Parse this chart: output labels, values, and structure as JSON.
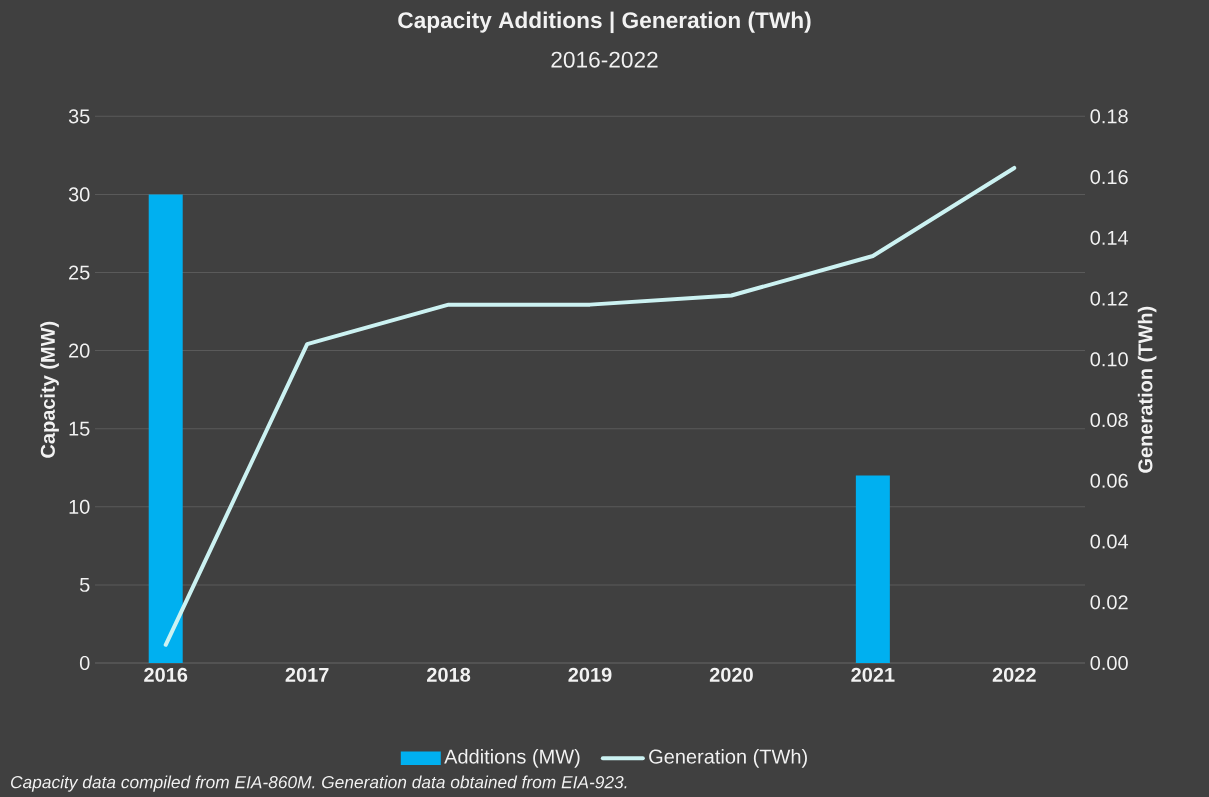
{
  "chart_data": {
    "type": "bar",
    "title": "Capacity Additions | Generation (TWh)",
    "subtitle": "2016-2022",
    "ylabel": "Capacity (MW)",
    "y2label": "Generation (TWh)",
    "categories": [
      "2016",
      "2017",
      "2018",
      "2019",
      "2020",
      "2021",
      "2022"
    ],
    "series": [
      {
        "name": "Additions (MW)",
        "color": "#00b0f0",
        "values": [
          30,
          0,
          0,
          0,
          0,
          12,
          0
        ]
      },
      {
        "name": "Generation (TWh)",
        "type": "line",
        "axis": "y2",
        "color": "#ccf2f2",
        "values": [
          0.006,
          0.105,
          0.118,
          0.118,
          0.121,
          0.134,
          0.163
        ]
      }
    ],
    "ylim": [
      0,
      35
    ],
    "yticks": [
      0,
      5,
      10,
      15,
      20,
      25,
      30,
      35
    ],
    "y2lim": [
      0,
      0.18
    ],
    "y2ticks": [
      {
        "value": 0,
        "label": "0.00"
      },
      {
        "value": 0.02,
        "label": "0.02"
      },
      {
        "value": 0.04,
        "label": "0.04"
      },
      {
        "value": 0.06,
        "label": "0.06"
      },
      {
        "value": 0.08,
        "label": "0.08"
      },
      {
        "value": 0.1,
        "label": "0.10"
      },
      {
        "value": 0.12,
        "label": "0.12"
      },
      {
        "value": 0.14,
        "label": "0.14"
      },
      {
        "value": 0.16,
        "label": "0.16"
      },
      {
        "value": 0.18,
        "label": "0.18"
      }
    ],
    "grid": "y",
    "legend": "bottom",
    "marker": "none",
    "line_style": "solid",
    "annotations": [
      "Capacity data compiled from EIA-860M. Generation data obtained from EIA-923."
    ]
  }
}
